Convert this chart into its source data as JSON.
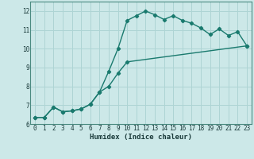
{
  "xlabel": "Humidex (Indice chaleur)",
  "bg_color": "#cce8e8",
  "line_color": "#1a7a6e",
  "grid_color": "#aed4d4",
  "spine_color": "#4a8a80",
  "xlim": [
    -0.5,
    23.5
  ],
  "ylim": [
    6,
    12.5
  ],
  "yticks": [
    6,
    7,
    8,
    9,
    10,
    11,
    12
  ],
  "xticks": [
    0,
    1,
    2,
    3,
    4,
    5,
    6,
    7,
    8,
    9,
    10,
    11,
    12,
    13,
    14,
    15,
    16,
    17,
    18,
    19,
    20,
    21,
    22,
    23
  ],
  "xtick_labels": [
    "0",
    "1",
    "2",
    "3",
    "4",
    "5",
    "6",
    "7",
    "8",
    "9",
    "10",
    "11",
    "12",
    "13",
    "14",
    "15",
    "16",
    "17",
    "18",
    "19",
    "20",
    "21",
    "22",
    "23"
  ],
  "line1_x": [
    0,
    1,
    2,
    3,
    4,
    5,
    6,
    7,
    8,
    9,
    10,
    11,
    12,
    13,
    14,
    15,
    16,
    17,
    18,
    19,
    20,
    21,
    22,
    23
  ],
  "line1_y": [
    6.35,
    6.35,
    6.9,
    6.65,
    6.7,
    6.8,
    7.05,
    7.7,
    8.8,
    10.0,
    11.5,
    11.75,
    12.0,
    11.8,
    11.55,
    11.75,
    11.5,
    11.35,
    11.1,
    10.75,
    11.05,
    10.7,
    10.9,
    10.15
  ],
  "line2_x": [
    0,
    1,
    2,
    3,
    4,
    5,
    6,
    7,
    8,
    9,
    10,
    23
  ],
  "line2_y": [
    6.35,
    6.35,
    6.9,
    6.65,
    6.7,
    6.8,
    7.05,
    7.7,
    8.0,
    8.7,
    9.3,
    10.15
  ],
  "marker": "D",
  "markersize": 2.2,
  "linewidth": 1.0,
  "tick_fontsize": 5.5,
  "xlabel_fontsize": 6.5
}
